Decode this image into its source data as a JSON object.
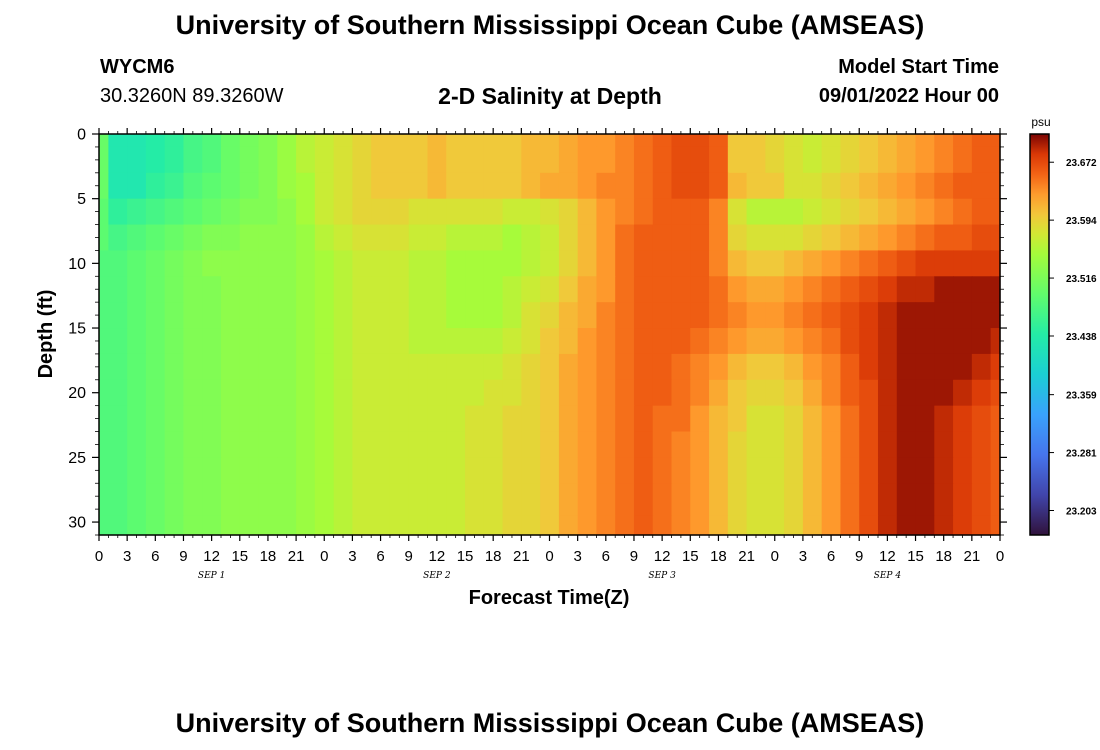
{
  "header": {
    "title": "University of Southern Mississippi Ocean Cube (AMSEAS)",
    "station_id": "WYCM6",
    "station_coords": "30.3260N  89.3260W",
    "plot_title": "2-D Salinity at Depth",
    "model_start_label": "Model Start Time",
    "model_start_value": "09/01/2022 Hour 00"
  },
  "footer": {
    "title": "University of Southern Mississippi Ocean Cube (AMSEAS)"
  },
  "chart_data": {
    "type": "heatmap",
    "title": "2-D Salinity at Depth",
    "xlabel": "Forecast Time(Z)",
    "ylabel": "Depth (ft)",
    "x_range_hours": [
      0,
      96
    ],
    "x_tick_labels": [
      "0",
      "3",
      "6",
      "9",
      "12",
      "15",
      "18",
      "21",
      "0",
      "3",
      "6",
      "9",
      "12",
      "15",
      "18",
      "21",
      "0",
      "3",
      "6",
      "9",
      "12",
      "15",
      "18",
      "21",
      "0",
      "3",
      "6",
      "9",
      "12",
      "15",
      "18",
      "21",
      "0"
    ],
    "day_labels": [
      "SEP 1",
      "SEP 2",
      "SEP 3",
      "SEP 4"
    ],
    "ylim": [
      0,
      31
    ],
    "y_ticks": [
      0,
      5,
      10,
      15,
      20,
      25,
      30
    ],
    "colorbar": {
      "unit": "psu",
      "ticks": [
        23.672,
        23.594,
        23.516,
        23.438,
        23.359,
        23.281,
        23.203
      ],
      "range": [
        23.17,
        23.71
      ]
    },
    "hours": [
      0,
      2,
      4,
      6,
      8,
      10,
      12,
      14,
      16,
      18,
      20,
      22,
      24,
      26,
      28,
      30,
      32,
      34,
      36,
      38,
      40,
      42,
      44,
      46,
      48,
      50,
      52,
      54,
      56,
      58,
      60,
      62,
      64,
      66,
      68,
      70,
      72,
      74,
      76,
      78,
      80,
      82,
      84,
      86,
      88,
      90,
      92,
      94,
      96
    ],
    "depths": [
      0,
      2,
      4,
      6,
      8,
      10,
      12,
      14,
      16,
      18,
      20,
      22,
      24,
      26,
      28,
      31
    ],
    "values": [
      [
        23.5,
        23.43,
        23.43,
        23.44,
        23.45,
        23.47,
        23.48,
        23.5,
        23.51,
        23.52,
        23.54,
        23.56,
        23.57,
        23.58,
        23.59,
        23.6,
        23.6,
        23.6,
        23.61,
        23.6,
        23.6,
        23.6,
        23.6,
        23.61,
        23.61,
        23.62,
        23.63,
        23.63,
        23.64,
        23.65,
        23.66,
        23.67,
        23.67,
        23.66,
        23.6,
        23.6,
        23.59,
        23.58,
        23.57,
        23.58,
        23.59,
        23.6,
        23.61,
        23.62,
        23.63,
        23.64,
        23.65,
        23.66,
        23.66
      ],
      [
        23.5,
        23.43,
        23.43,
        23.44,
        23.45,
        23.47,
        23.48,
        23.5,
        23.51,
        23.52,
        23.54,
        23.56,
        23.57,
        23.58,
        23.59,
        23.6,
        23.6,
        23.6,
        23.61,
        23.6,
        23.6,
        23.6,
        23.6,
        23.61,
        23.61,
        23.62,
        23.63,
        23.63,
        23.64,
        23.65,
        23.66,
        23.67,
        23.67,
        23.66,
        23.6,
        23.6,
        23.59,
        23.58,
        23.57,
        23.58,
        23.59,
        23.6,
        23.61,
        23.62,
        23.63,
        23.64,
        23.65,
        23.66,
        23.66
      ],
      [
        23.5,
        23.43,
        23.43,
        23.45,
        23.46,
        23.48,
        23.49,
        23.5,
        23.51,
        23.52,
        23.54,
        23.55,
        23.57,
        23.58,
        23.59,
        23.6,
        23.6,
        23.6,
        23.61,
        23.6,
        23.6,
        23.6,
        23.6,
        23.61,
        23.62,
        23.62,
        23.63,
        23.64,
        23.64,
        23.65,
        23.66,
        23.67,
        23.67,
        23.66,
        23.61,
        23.6,
        23.6,
        23.58,
        23.58,
        23.59,
        23.6,
        23.61,
        23.62,
        23.63,
        23.64,
        23.65,
        23.66,
        23.66,
        23.66
      ],
      [
        23.49,
        23.45,
        23.46,
        23.47,
        23.48,
        23.49,
        23.5,
        23.51,
        23.52,
        23.52,
        23.53,
        23.55,
        23.57,
        23.58,
        23.59,
        23.59,
        23.59,
        23.58,
        23.58,
        23.58,
        23.58,
        23.58,
        23.57,
        23.57,
        23.58,
        23.59,
        23.61,
        23.63,
        23.64,
        23.65,
        23.66,
        23.66,
        23.66,
        23.64,
        23.58,
        23.56,
        23.56,
        23.56,
        23.57,
        23.58,
        23.59,
        23.6,
        23.61,
        23.62,
        23.63,
        23.64,
        23.65,
        23.66,
        23.66
      ],
      [
        23.49,
        23.47,
        23.48,
        23.49,
        23.5,
        23.51,
        23.52,
        23.52,
        23.53,
        23.53,
        23.53,
        23.54,
        23.56,
        23.57,
        23.58,
        23.58,
        23.58,
        23.57,
        23.57,
        23.56,
        23.56,
        23.56,
        23.55,
        23.56,
        23.57,
        23.59,
        23.61,
        23.63,
        23.65,
        23.66,
        23.66,
        23.66,
        23.66,
        23.64,
        23.59,
        23.58,
        23.58,
        23.58,
        23.59,
        23.6,
        23.61,
        23.62,
        23.63,
        23.64,
        23.65,
        23.66,
        23.66,
        23.67,
        23.67
      ],
      [
        23.48,
        23.48,
        23.49,
        23.5,
        23.51,
        23.52,
        23.53,
        23.53,
        23.53,
        23.53,
        23.53,
        23.54,
        23.55,
        23.56,
        23.57,
        23.57,
        23.57,
        23.56,
        23.56,
        23.55,
        23.55,
        23.55,
        23.55,
        23.56,
        23.57,
        23.59,
        23.61,
        23.63,
        23.65,
        23.66,
        23.66,
        23.66,
        23.66,
        23.64,
        23.61,
        23.6,
        23.6,
        23.61,
        23.62,
        23.63,
        23.64,
        23.65,
        23.66,
        23.67,
        23.68,
        23.68,
        23.68,
        23.68,
        23.68
      ],
      [
        23.48,
        23.48,
        23.49,
        23.5,
        23.51,
        23.52,
        23.52,
        23.53,
        23.53,
        23.53,
        23.53,
        23.54,
        23.55,
        23.56,
        23.57,
        23.57,
        23.57,
        23.56,
        23.56,
        23.55,
        23.55,
        23.55,
        23.56,
        23.57,
        23.58,
        23.6,
        23.62,
        23.63,
        23.65,
        23.66,
        23.66,
        23.66,
        23.66,
        23.65,
        23.63,
        23.62,
        23.62,
        23.63,
        23.64,
        23.65,
        23.66,
        23.67,
        23.68,
        23.69,
        23.69,
        23.7,
        23.7,
        23.7,
        23.7
      ],
      [
        23.48,
        23.48,
        23.49,
        23.5,
        23.51,
        23.52,
        23.52,
        23.53,
        23.53,
        23.53,
        23.53,
        23.54,
        23.55,
        23.56,
        23.57,
        23.57,
        23.57,
        23.56,
        23.56,
        23.55,
        23.55,
        23.55,
        23.56,
        23.58,
        23.59,
        23.61,
        23.62,
        23.64,
        23.65,
        23.66,
        23.66,
        23.66,
        23.66,
        23.65,
        23.64,
        23.63,
        23.63,
        23.64,
        23.65,
        23.66,
        23.67,
        23.68,
        23.69,
        23.7,
        23.7,
        23.7,
        23.7,
        23.7,
        23.7
      ],
      [
        23.48,
        23.48,
        23.49,
        23.5,
        23.51,
        23.52,
        23.52,
        23.53,
        23.53,
        23.53,
        23.53,
        23.54,
        23.55,
        23.56,
        23.57,
        23.57,
        23.57,
        23.56,
        23.56,
        23.56,
        23.56,
        23.56,
        23.57,
        23.58,
        23.6,
        23.61,
        23.63,
        23.64,
        23.65,
        23.66,
        23.66,
        23.66,
        23.65,
        23.64,
        23.63,
        23.62,
        23.62,
        23.63,
        23.64,
        23.65,
        23.67,
        23.68,
        23.69,
        23.7,
        23.7,
        23.7,
        23.7,
        23.7,
        23.69
      ],
      [
        23.48,
        23.48,
        23.49,
        23.5,
        23.51,
        23.52,
        23.52,
        23.53,
        23.53,
        23.53,
        23.53,
        23.54,
        23.55,
        23.56,
        23.57,
        23.57,
        23.57,
        23.57,
        23.57,
        23.57,
        23.57,
        23.57,
        23.58,
        23.59,
        23.6,
        23.62,
        23.63,
        23.64,
        23.65,
        23.66,
        23.66,
        23.65,
        23.64,
        23.63,
        23.61,
        23.6,
        23.6,
        23.61,
        23.63,
        23.64,
        23.66,
        23.68,
        23.69,
        23.7,
        23.7,
        23.7,
        23.7,
        23.69,
        23.68
      ],
      [
        23.48,
        23.48,
        23.49,
        23.5,
        23.51,
        23.52,
        23.52,
        23.53,
        23.53,
        23.53,
        23.53,
        23.54,
        23.55,
        23.56,
        23.57,
        23.57,
        23.57,
        23.57,
        23.57,
        23.57,
        23.57,
        23.58,
        23.58,
        23.59,
        23.6,
        23.62,
        23.63,
        23.64,
        23.65,
        23.66,
        23.66,
        23.65,
        23.64,
        23.62,
        23.6,
        23.59,
        23.59,
        23.6,
        23.62,
        23.64,
        23.66,
        23.67,
        23.69,
        23.7,
        23.7,
        23.7,
        23.69,
        23.68,
        23.67
      ],
      [
        23.48,
        23.48,
        23.49,
        23.5,
        23.51,
        23.52,
        23.52,
        23.53,
        23.53,
        23.53,
        23.53,
        23.54,
        23.55,
        23.56,
        23.57,
        23.57,
        23.57,
        23.57,
        23.57,
        23.57,
        23.58,
        23.58,
        23.59,
        23.59,
        23.6,
        23.62,
        23.63,
        23.64,
        23.65,
        23.66,
        23.65,
        23.65,
        23.63,
        23.61,
        23.6,
        23.58,
        23.58,
        23.59,
        23.61,
        23.63,
        23.65,
        23.67,
        23.69,
        23.7,
        23.7,
        23.69,
        23.68,
        23.67,
        23.66
      ],
      [
        23.48,
        23.48,
        23.49,
        23.5,
        23.51,
        23.52,
        23.52,
        23.53,
        23.53,
        23.53,
        23.53,
        23.54,
        23.55,
        23.56,
        23.57,
        23.57,
        23.57,
        23.57,
        23.57,
        23.57,
        23.58,
        23.58,
        23.59,
        23.59,
        23.6,
        23.62,
        23.63,
        23.64,
        23.65,
        23.66,
        23.65,
        23.64,
        23.63,
        23.61,
        23.59,
        23.58,
        23.58,
        23.59,
        23.61,
        23.63,
        23.65,
        23.67,
        23.69,
        23.7,
        23.7,
        23.69,
        23.68,
        23.67,
        23.66
      ],
      [
        23.48,
        23.48,
        23.49,
        23.5,
        23.51,
        23.52,
        23.52,
        23.53,
        23.53,
        23.53,
        23.53,
        23.54,
        23.55,
        23.56,
        23.57,
        23.57,
        23.57,
        23.57,
        23.57,
        23.57,
        23.58,
        23.58,
        23.59,
        23.59,
        23.6,
        23.62,
        23.63,
        23.64,
        23.65,
        23.66,
        23.65,
        23.64,
        23.63,
        23.61,
        23.59,
        23.58,
        23.58,
        23.59,
        23.61,
        23.63,
        23.65,
        23.67,
        23.69,
        23.7,
        23.7,
        23.69,
        23.68,
        23.67,
        23.66
      ],
      [
        23.48,
        23.48,
        23.49,
        23.5,
        23.51,
        23.52,
        23.52,
        23.53,
        23.53,
        23.53,
        23.53,
        23.54,
        23.55,
        23.56,
        23.57,
        23.57,
        23.57,
        23.57,
        23.57,
        23.57,
        23.58,
        23.58,
        23.59,
        23.59,
        23.6,
        23.62,
        23.63,
        23.64,
        23.65,
        23.66,
        23.65,
        23.64,
        23.63,
        23.61,
        23.59,
        23.58,
        23.58,
        23.59,
        23.61,
        23.63,
        23.65,
        23.67,
        23.69,
        23.7,
        23.7,
        23.69,
        23.68,
        23.67,
        23.66
      ],
      [
        23.48,
        23.48,
        23.49,
        23.5,
        23.51,
        23.52,
        23.52,
        23.53,
        23.53,
        23.53,
        23.53,
        23.54,
        23.55,
        23.56,
        23.57,
        23.57,
        23.57,
        23.57,
        23.57,
        23.57,
        23.58,
        23.58,
        23.59,
        23.59,
        23.6,
        23.62,
        23.63,
        23.64,
        23.65,
        23.66,
        23.65,
        23.64,
        23.63,
        23.61,
        23.59,
        23.58,
        23.58,
        23.59,
        23.61,
        23.63,
        23.65,
        23.67,
        23.69,
        23.7,
        23.7,
        23.69,
        23.68,
        23.67,
        23.66
      ]
    ]
  }
}
